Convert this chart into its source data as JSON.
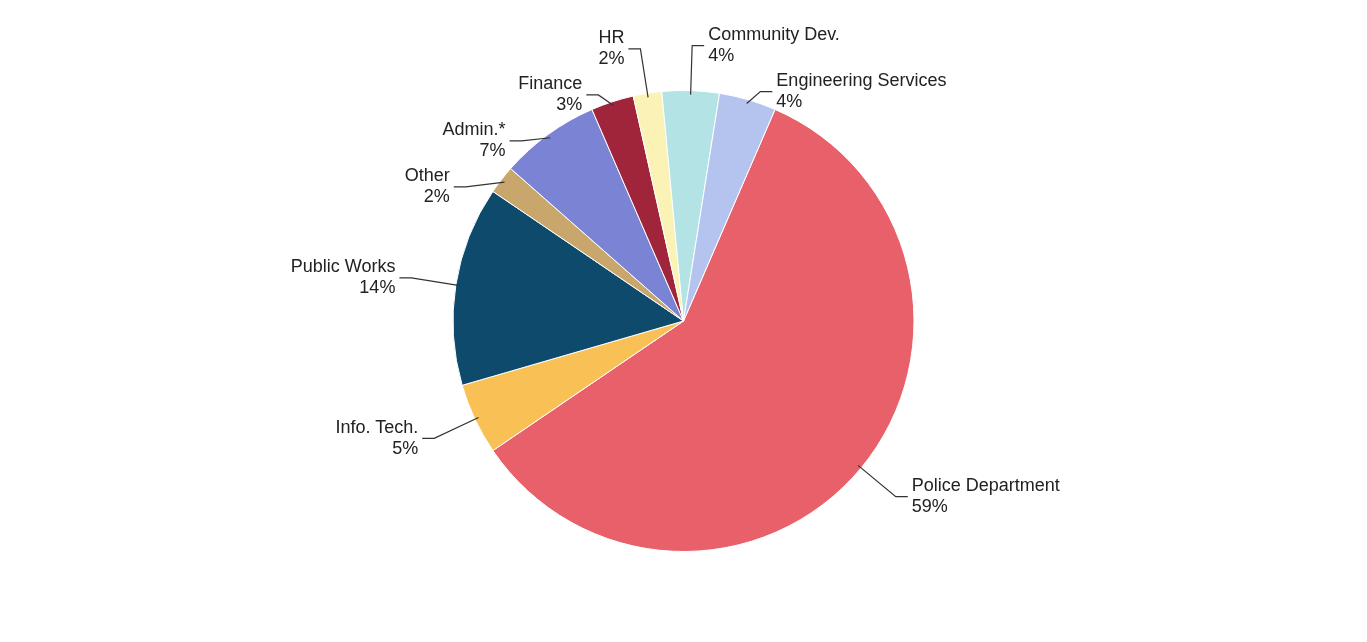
{
  "chart_data": {
    "type": "pie",
    "categories": [
      "Police Department",
      "Info. Tech.",
      "Public Works",
      "Other",
      "Admin.*",
      "Finance",
      "HR",
      "Community Dev.",
      "Engineering Services"
    ],
    "values": [
      59,
      5,
      14,
      2,
      7,
      3,
      2,
      4,
      4
    ],
    "colors": [
      "#e8606a",
      "#f9c055",
      "#0d4a6b",
      "#c9a66b",
      "#7b84d4",
      "#a0243a",
      "#fbf3b5",
      "#b3e3e4",
      "#b4c4ee"
    ],
    "value_labels": [
      "59%",
      "5%",
      "14%",
      "2%",
      "7%",
      "3%",
      "2%",
      "4%",
      "4%"
    ]
  }
}
